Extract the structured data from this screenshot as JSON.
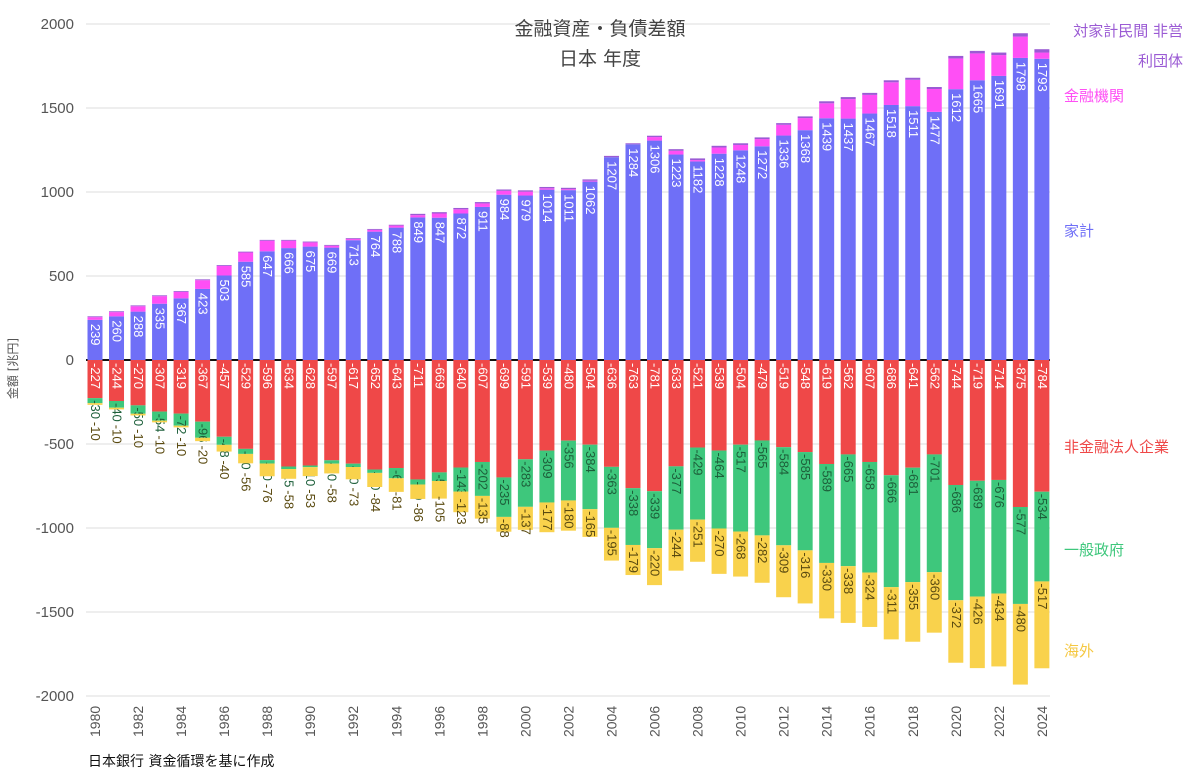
{
  "chart_data": {
    "type": "bar",
    "stacked": true,
    "title": "金融資産・負債差額",
    "subtitle": "日本 年度",
    "ylabel": "金額 [兆円]",
    "xlabel": "",
    "ylim": [
      -2000,
      2000
    ],
    "yticks": [
      -2000,
      -1500,
      -1000,
      -500,
      0,
      500,
      1000,
      1500,
      2000
    ],
    "grid": true,
    "source": "日本銀行 資金循環を基に作成",
    "categories": [
      1980,
      1981,
      1982,
      1983,
      1984,
      1985,
      1986,
      1987,
      1988,
      1989,
      1990,
      1991,
      1992,
      1993,
      1994,
      1995,
      1996,
      1997,
      1998,
      1999,
      2000,
      2001,
      2002,
      2003,
      2004,
      2005,
      2006,
      2007,
      2008,
      2009,
      2010,
      2011,
      2012,
      2013,
      2014,
      2015,
      2016,
      2017,
      2018,
      2019,
      2020,
      2021,
      2022,
      2023,
      2024
    ],
    "series": [
      {
        "name": "家計",
        "color": "#6f6ff7",
        "label_color": "#ffffff",
        "values": [
          239,
          260,
          288,
          335,
          367,
          423,
          503,
          585,
          647,
          666,
          675,
          669,
          713,
          764,
          788,
          849,
          847,
          872,
          911,
          984,
          979,
          1014,
          1011,
          1062,
          1207,
          1284,
          1306,
          1223,
          1182,
          1228,
          1248,
          1272,
          1336,
          1368,
          1439,
          1437,
          1467,
          1518,
          1511,
          1477,
          1612,
          1665,
          1691,
          1798,
          1793
        ]
      },
      {
        "name": "金融機関",
        "color": "#ff4ff5",
        "label_color": "#ff4ff5",
        "values": [
          16,
          25,
          32,
          45,
          38,
          52,
          57,
          55,
          63,
          44,
          25,
          11,
          7,
          11,
          12,
          13,
          25,
          25,
          21,
          23,
          23,
          8,
          6,
          5,
          0,
          0,
          21,
          22,
          8,
          37,
          32,
          43,
          64,
          72,
          89,
          116,
          111,
          135,
          157,
          136,
          183,
          160,
          124,
          127,
          37
        ]
      },
      {
        "name": "対家計民間 非営利団体",
        "color": "#9b5bd4",
        "label_color": "#9b5bd4",
        "values": [
          5,
          5,
          5,
          5,
          5,
          5,
          5,
          5,
          5,
          5,
          5,
          5,
          5,
          5,
          5,
          8,
          8,
          8,
          8,
          8,
          8,
          8,
          8,
          8,
          8,
          6,
          8,
          10,
          10,
          10,
          10,
          10,
          10,
          10,
          12,
          12,
          12,
          12,
          12,
          12,
          15,
          15,
          15,
          20,
          20
        ]
      },
      {
        "name": "非金融法人企業",
        "color": "#ef4848",
        "label_color": "#ef4848",
        "values": [
          -227,
          -244,
          -270,
          -307,
          -319,
          -367,
          -457,
          -529,
          -596,
          -634,
          -628,
          -597,
          -617,
          -652,
          -643,
          -711,
          -669,
          -640,
          -607,
          -699,
          -591,
          -539,
          -480,
          -504,
          -636,
          -763,
          -781,
          -633,
          -521,
          -539,
          -504,
          -479,
          -519,
          -548,
          -619,
          -562,
          -607,
          -686,
          -641,
          -562,
          -744,
          -719,
          -714,
          -875,
          -784
        ]
      },
      {
        "name": "一般政府",
        "color": "#3ec77c",
        "label_color": "#3ec77c",
        "values": [
          -30,
          -40,
          -50,
          -54,
          -72,
          -96,
          -48,
          -30,
          -20,
          -15,
          -10,
          -20,
          -20,
          -20,
          -61,
          -30,
          -51,
          -143,
          -202,
          -235,
          -283,
          -309,
          -356,
          -384,
          -363,
          -338,
          -339,
          -377,
          -429,
          -464,
          -517,
          -565,
          -584,
          -585,
          -589,
          -665,
          -658,
          -666,
          -681,
          -701,
          -686,
          -689,
          -676,
          -577,
          -534
        ]
      },
      {
        "name": "海外",
        "color": "#f9d24c",
        "label_color": "#f5c842",
        "values": [
          -10,
          -10,
          -10,
          -10,
          -10,
          -20,
          -40,
          -56,
          -76,
          -58,
          -53,
          -58,
          -73,
          -84,
          -81,
          -86,
          -105,
          -123,
          -135,
          -88,
          -137,
          -177,
          -180,
          -165,
          -195,
          -179,
          -220,
          -244,
          -251,
          -270,
          -268,
          -282,
          -309,
          -316,
          -330,
          -338,
          -324,
          -311,
          -355,
          -360,
          -372,
          -426,
          -434,
          -480,
          -517
        ]
      }
    ]
  }
}
